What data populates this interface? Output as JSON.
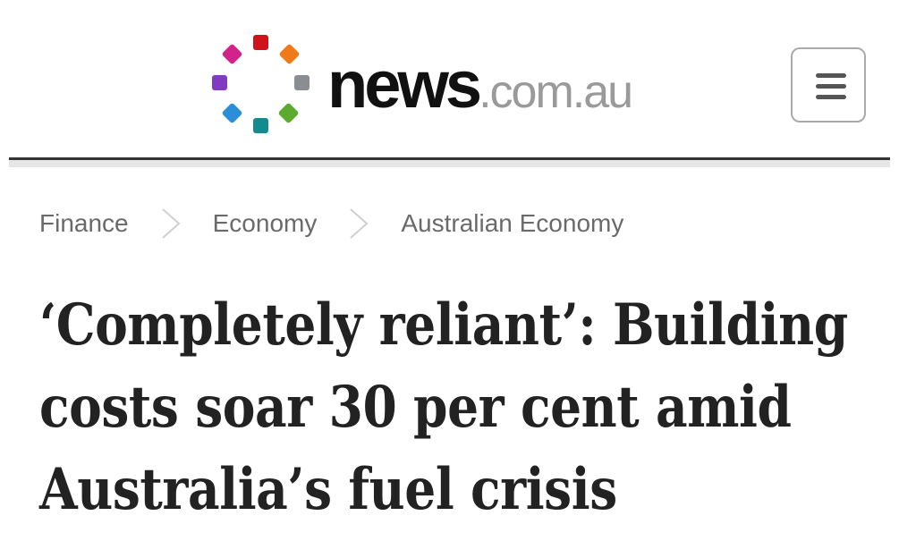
{
  "header": {
    "logo": {
      "wordmark_main": "news",
      "wordmark_domain": ".com.au",
      "dot_colors": [
        "#d0121b",
        "#f07a1a",
        "#8a8d91",
        "#5aab2e",
        "#148a8f",
        "#2a8fd8",
        "#7f3cc0",
        "#d1238a"
      ]
    },
    "menu_icon": "hamburger-menu-icon"
  },
  "breadcrumb": {
    "items": [
      "Finance",
      "Economy",
      "Australian Economy"
    ],
    "separator_icon": "chevron-right-icon"
  },
  "article": {
    "headline_lines": [
      "‘Completely reliant’: Building",
      "costs soar 30 per cent amid",
      "Australia’s fuel crisis"
    ]
  }
}
